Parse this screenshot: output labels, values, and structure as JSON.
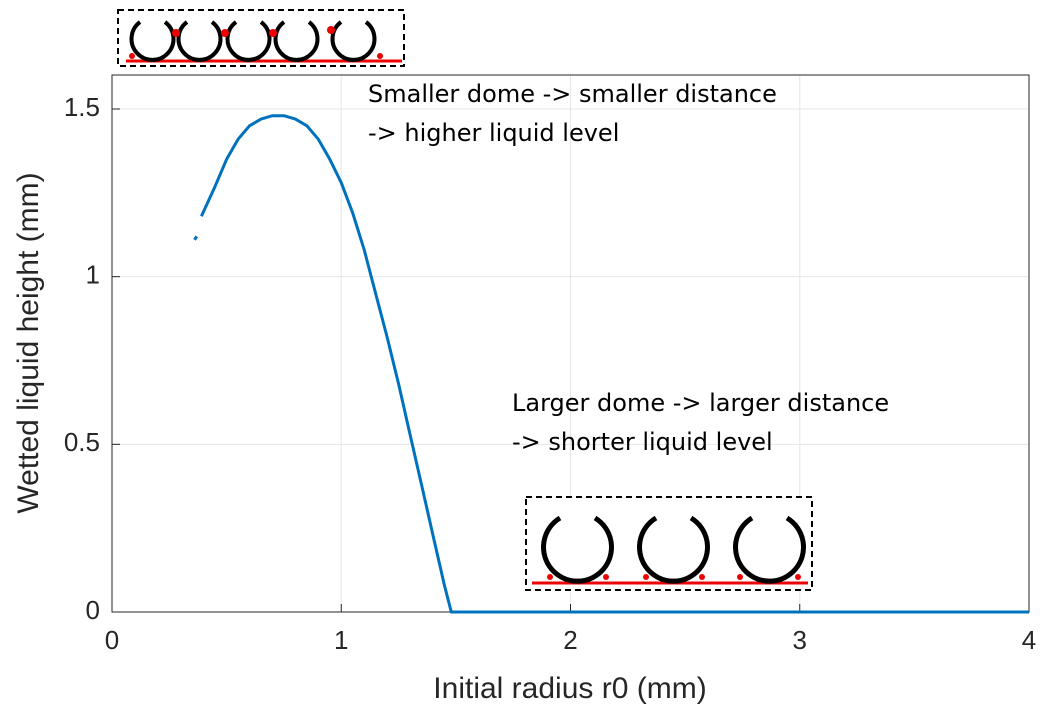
{
  "chart_data": {
    "type": "line",
    "xlabel": "Initial radius r0 (mm)",
    "ylabel": "Wetted liquid height (mm)",
    "annotations": [
      "Smaller dome -> smaller distance",
      "-> higher liquid level",
      "Larger dome -> larger distance",
      "-> shorter liquid level"
    ],
    "x": [
      0.36,
      0.37,
      0.38,
      0.39,
      0.45,
      0.5,
      0.55,
      0.6,
      0.65,
      0.7,
      0.75,
      0.8,
      0.85,
      0.9,
      0.95,
      1.0,
      1.05,
      1.1,
      1.15,
      1.2,
      1.25,
      1.3,
      1.35,
      1.4,
      1.45,
      1.48,
      1.5,
      2.0,
      3.0,
      4.0
    ],
    "values": [
      1.11,
      1.12,
      null,
      1.18,
      1.27,
      1.35,
      1.41,
      1.45,
      1.47,
      1.48,
      1.48,
      1.47,
      1.45,
      1.41,
      1.35,
      1.28,
      1.19,
      1.08,
      0.95,
      0.82,
      0.68,
      0.53,
      0.38,
      0.23,
      0.08,
      0.0,
      0.0,
      0.0,
      0.0,
      0.0
    ],
    "color": "#0072bd",
    "xlim": [
      0,
      4
    ],
    "xticks": [
      0,
      1,
      2,
      3,
      4
    ],
    "ylim": [
      0,
      1.5
    ],
    "yticks": [
      0,
      0.5,
      1,
      1.5
    ],
    "grid": true
  }
}
